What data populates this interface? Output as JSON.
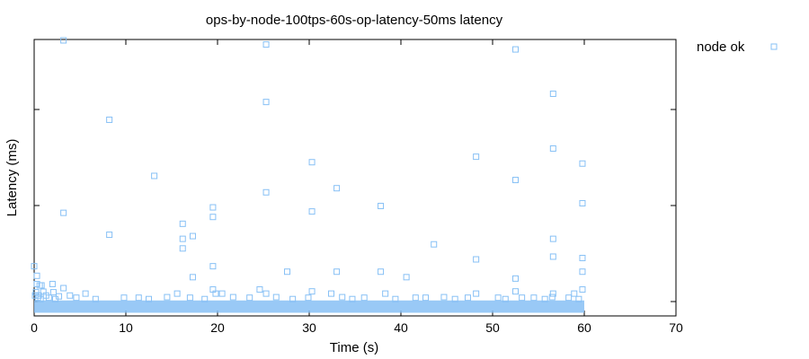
{
  "chart_data": {
    "type": "scatter",
    "title": "ops-by-node-100tps-60s-op-latency-50ms latency",
    "xlabel": "Time (s)",
    "ylabel": "Latency (ms)",
    "xlim": [
      0,
      70
    ],
    "ylim": [
      0,
      100
    ],
    "x_ticks": [
      "0",
      "10",
      "20",
      "30",
      "40",
      "50",
      "60",
      "70"
    ],
    "y_ticks_labeled": false,
    "grid": false,
    "legend": "top-right outside plot",
    "series": [
      {
        "name": "node ok",
        "color": "#87c0f5",
        "marker": "open-square",
        "points": [
          [
            3.2,
            100
          ],
          [
            25.3,
            98.5
          ],
          [
            52.5,
            96.7
          ],
          [
            56.6,
            80.5
          ],
          [
            25.3,
            77.5
          ],
          [
            8.2,
            71
          ],
          [
            56.6,
            60.5
          ],
          [
            48.2,
            57.5
          ],
          [
            30.3,
            55.5
          ],
          [
            59.8,
            55
          ],
          [
            13.1,
            50.5
          ],
          [
            52.5,
            49
          ],
          [
            33.0,
            46
          ],
          [
            25.3,
            44.5
          ],
          [
            59.8,
            40.5
          ],
          [
            37.8,
            39.5
          ],
          [
            19.5,
            39
          ],
          [
            30.3,
            37.5
          ],
          [
            3.2,
            37
          ],
          [
            19.5,
            35.5
          ],
          [
            16.2,
            33
          ],
          [
            8.2,
            29
          ],
          [
            17.3,
            28.5
          ],
          [
            56.6,
            27.5
          ],
          [
            16.2,
            27.5
          ],
          [
            43.6,
            25.5
          ],
          [
            16.2,
            24
          ],
          [
            56.6,
            21
          ],
          [
            48.2,
            20
          ],
          [
            59.8,
            20.5
          ],
          [
            0.0,
            17.5
          ],
          [
            19.5,
            17.5
          ],
          [
            27.6,
            15.5
          ],
          [
            33.0,
            15.5
          ],
          [
            37.8,
            15.5
          ],
          [
            59.8,
            15.5
          ],
          [
            0.3,
            14
          ],
          [
            17.3,
            13.5
          ],
          [
            40.6,
            13.5
          ],
          [
            52.5,
            13
          ],
          [
            0.3,
            11
          ],
          [
            0.6,
            10.5
          ],
          [
            0.8,
            10.5
          ],
          [
            2.0,
            11
          ],
          [
            3.2,
            9.5
          ],
          [
            19.5,
            9
          ],
          [
            24.6,
            9
          ],
          [
            59.8,
            9
          ],
          [
            30.3,
            8.3
          ],
          [
            52.5,
            8.3
          ],
          [
            0.2,
            8
          ],
          [
            1.0,
            8.2
          ],
          [
            2.1,
            8
          ],
          [
            5.6,
            7.5
          ],
          [
            15.6,
            7.5
          ],
          [
            19.8,
            7.5
          ],
          [
            20.5,
            7.5
          ],
          [
            25.3,
            7.5
          ],
          [
            32.4,
            7.5
          ],
          [
            38.3,
            7.5
          ],
          [
            48.2,
            7.5
          ],
          [
            56.6,
            7.5
          ],
          [
            58.9,
            7.5
          ],
          [
            0.1,
            6.8
          ],
          [
            0.5,
            6.8
          ],
          [
            1.3,
            6.8
          ],
          [
            2.7,
            6.5
          ],
          [
            3.9,
            6.8
          ],
          [
            11.4,
            6
          ],
          [
            14.5,
            6.2
          ],
          [
            21.7,
            6.2
          ],
          [
            26.4,
            6.2
          ],
          [
            33.6,
            6.2
          ],
          [
            41.6,
            6
          ],
          [
            44.7,
            6.2
          ],
          [
            50.6,
            6
          ],
          [
            54.5,
            6
          ],
          [
            56.5,
            6.2
          ],
          [
            0.4,
            6
          ],
          [
            1.6,
            6
          ],
          [
            4.6,
            6
          ],
          [
            9.8,
            6
          ],
          [
            17.0,
            6
          ],
          [
            23.5,
            6
          ],
          [
            29.9,
            6
          ],
          [
            36.0,
            6
          ],
          [
            42.7,
            6
          ],
          [
            47.3,
            6
          ],
          [
            53.2,
            6
          ],
          [
            58.3,
            6
          ],
          [
            0.7,
            5.5
          ],
          [
            2.3,
            5.5
          ],
          [
            6.7,
            5.5
          ],
          [
            12.5,
            5.5
          ],
          [
            18.6,
            5.5
          ],
          [
            28.2,
            5.5
          ],
          [
            34.7,
            5.5
          ],
          [
            39.4,
            5.5
          ],
          [
            45.9,
            5.5
          ],
          [
            51.4,
            5.5
          ],
          [
            55.7,
            5.5
          ],
          [
            59.4,
            5.5
          ]
        ],
        "dense_band": {
          "x_range": [
            0,
            60
          ],
          "y_range": [
            0.5,
            5
          ]
        }
      }
    ]
  }
}
